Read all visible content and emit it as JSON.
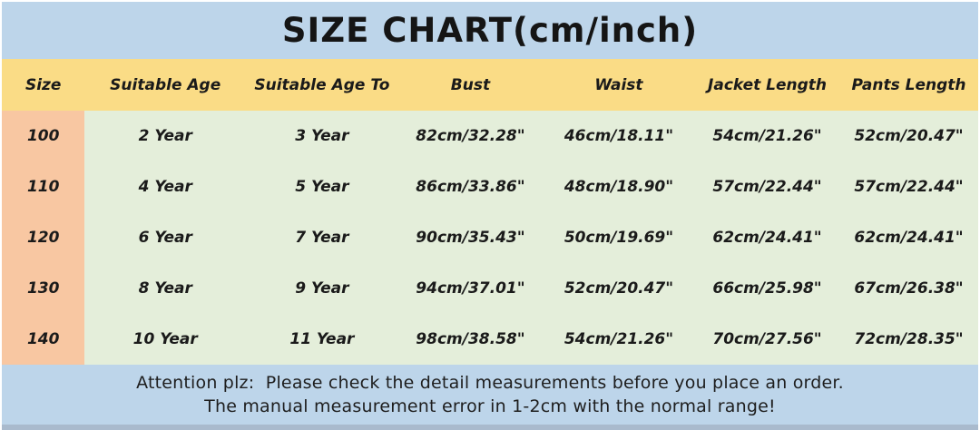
{
  "title": "SIZE CHART(cm/inch)",
  "chart_data": {
    "type": "table",
    "title": "SIZE CHART(cm/inch)",
    "columns": [
      "Size",
      "Suitable Age",
      "Suitable Age To",
      "Bust",
      "Waist",
      "Jacket Length",
      "Pants Length"
    ],
    "rows": [
      [
        "100",
        "2 Year",
        "3 Year",
        "82cm/32.28\"",
        "46cm/18.11\"",
        "54cm/21.26\"",
        "52cm/20.47\""
      ],
      [
        "110",
        "4 Year",
        "5 Year",
        "86cm/33.86\"",
        "48cm/18.90\"",
        "57cm/22.44\"",
        "57cm/22.44\""
      ],
      [
        "120",
        "6 Year",
        "7 Year",
        "90cm/35.43\"",
        "50cm/19.69\"",
        "62cm/24.41\"",
        "62cm/24.41\""
      ],
      [
        "130",
        "8 Year",
        "9 Year",
        "94cm/37.01\"",
        "52cm/20.47\"",
        "66cm/25.98\"",
        "67cm/26.38\""
      ],
      [
        "140",
        "10 Year",
        "11 Year",
        "98cm/38.58\"",
        "54cm/21.26\"",
        "70cm/27.56\"",
        "72cm/28.35\""
      ]
    ]
  },
  "notes": {
    "line1": "Attention plz:  Please check the detail measurements before you place an order.",
    "line2": "The manual measurement error in 1-2cm with the normal range!"
  },
  "colors": {
    "title_bg": "#bdd5ea",
    "header_bg": "#fadc86",
    "size_column_bg": "#f8c7a2",
    "body_bg": "#e4eeda",
    "notes_bg": "#bdd5ea",
    "bottom_strip": "#a9bacd",
    "text": "#1a1a1a"
  }
}
